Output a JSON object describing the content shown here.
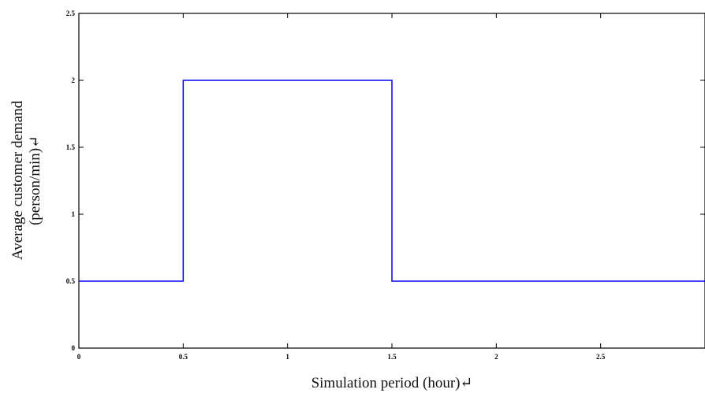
{
  "chart_data": {
    "type": "line",
    "line_style": "step",
    "xlabel": "Simulation period (hour)↵",
    "ylabel_lines": [
      "Average customer demand",
      "(person/min)↵"
    ],
    "xlim": [
      0,
      3
    ],
    "ylim": [
      0,
      2.5
    ],
    "xticks": [
      0,
      0.5,
      1,
      1.5,
      2,
      2.5
    ],
    "xtick_labels": [
      "0",
      "0.5",
      "1",
      "1.5",
      "2",
      "2.5"
    ],
    "yticks": [
      0,
      0.5,
      1,
      1.5,
      2,
      2.5
    ],
    "ytick_labels": [
      "0",
      "0.5",
      "1",
      "1.5",
      "2",
      "2.5"
    ],
    "grid": false,
    "series": [
      {
        "x": [
          0,
          0.5,
          0.5,
          1.5,
          1.5,
          3
        ],
        "y": [
          0.5,
          0.5,
          2,
          2,
          0.5,
          0.5
        ],
        "color": "#0000ff"
      }
    ]
  }
}
